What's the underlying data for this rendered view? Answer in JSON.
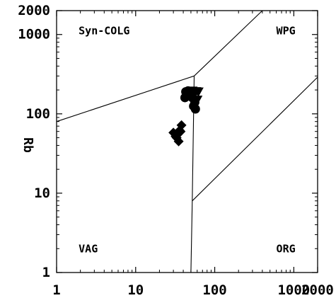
{
  "chart_data": {
    "type": "scatter",
    "title": "",
    "xlabel": "",
    "ylabel": "Rb",
    "xscale": "log",
    "yscale": "log",
    "xlim": [
      1,
      2000
    ],
    "ylim": [
      1,
      2000
    ],
    "x_ticks": [
      {
        "value": 1,
        "label": "1"
      },
      {
        "value": 10,
        "label": "10"
      },
      {
        "value": 100,
        "label": "100"
      },
      {
        "value": 1000,
        "label": "1000"
      },
      {
        "value": 2000,
        "label": "2000"
      }
    ],
    "y_ticks": [
      {
        "value": 1,
        "label": "1"
      },
      {
        "value": 10,
        "label": "10"
      },
      {
        "value": 100,
        "label": "100"
      },
      {
        "value": 1000,
        "label": "1000"
      },
      {
        "value": 2000,
        "label": "2000"
      }
    ],
    "grid": false,
    "boundaries": [
      {
        "name": "VAG-SynCOLG",
        "points": [
          [
            1,
            80
          ],
          [
            55,
            300
          ]
        ]
      },
      {
        "name": "WPG-SynCOLG",
        "points": [
          [
            55,
            300
          ],
          [
            400,
            2000
          ]
        ]
      },
      {
        "name": "VAG-WPG",
        "points": [
          [
            55,
            300
          ],
          [
            52,
            8
          ],
          [
            50,
            1
          ]
        ]
      },
      {
        "name": "WPG-ORG",
        "points": [
          [
            52,
            8
          ],
          [
            2000,
            290
          ]
        ]
      }
    ],
    "field_labels": [
      {
        "text": "Syn-COLG",
        "x": 1.9,
        "y": 1000
      },
      {
        "text": "WPG",
        "x": 600,
        "y": 1000
      },
      {
        "text": "VAG",
        "x": 1.9,
        "y": 1.8
      },
      {
        "text": "ORG",
        "x": 600,
        "y": 1.8
      }
    ],
    "series": [
      {
        "marker": "circle",
        "points": [
          [
            43,
            190
          ],
          [
            46,
            195
          ],
          [
            44,
            170
          ],
          [
            48,
            175
          ],
          [
            52,
            160
          ],
          [
            42,
            160
          ],
          [
            56,
            140
          ],
          [
            54,
            125
          ],
          [
            57,
            115
          ]
        ]
      },
      {
        "marker": "triangle-down",
        "points": [
          [
            52,
            195
          ],
          [
            58,
            192
          ],
          [
            62,
            190
          ],
          [
            50,
            180
          ],
          [
            55,
            175
          ],
          [
            60,
            150
          ]
        ]
      },
      {
        "marker": "diamond",
        "points": [
          [
            30,
            58
          ],
          [
            33,
            50
          ],
          [
            35,
            45
          ],
          [
            36,
            62
          ],
          [
            38,
            72
          ],
          [
            34,
            55
          ],
          [
            32,
            52
          ],
          [
            37,
            60
          ]
        ]
      }
    ]
  }
}
